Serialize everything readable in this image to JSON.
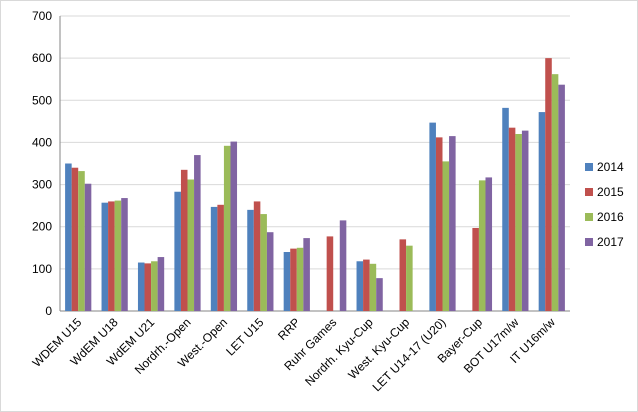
{
  "chart_data": {
    "type": "bar",
    "categories": [
      "WDEM U15",
      "WdEM U18",
      "WdEM U21",
      "Nordrh.-Open",
      "West.-Open",
      "LET U15",
      "RRP",
      "Ruhr Games",
      "Nordrh. Kyu-Cup",
      "West. Kyu-Cup",
      "LET U14-17 (U20)",
      "Bayer-Cup",
      "BOT U17m/w",
      "IT U16m/w"
    ],
    "series": [
      {
        "name": "2014",
        "color": "#4f81bd",
        "values": [
          350,
          257,
          115,
          283,
          247,
          240,
          140,
          null,
          118,
          null,
          447,
          null,
          482,
          472
        ]
      },
      {
        "name": "2015",
        "color": "#c0504d",
        "values": [
          340,
          260,
          113,
          335,
          252,
          260,
          148,
          177,
          122,
          170,
          412,
          197,
          435,
          600
        ]
      },
      {
        "name": "2016",
        "color": "#9bbb59",
        "values": [
          332,
          262,
          118,
          312,
          392,
          230,
          150,
          null,
          112,
          155,
          355,
          310,
          420,
          562
        ]
      },
      {
        "name": "2017",
        "color": "#8064a2",
        "values": [
          302,
          268,
          128,
          370,
          402,
          187,
          173,
          215,
          78,
          null,
          415,
          317,
          428,
          537
        ]
      }
    ],
    "ylim": [
      0,
      700
    ],
    "yticks": [
      0,
      100,
      200,
      300,
      400,
      500,
      600,
      700
    ],
    "grid": true,
    "legend": "right"
  }
}
